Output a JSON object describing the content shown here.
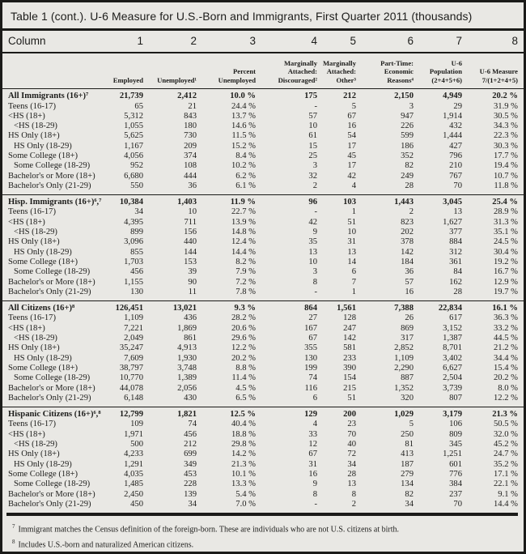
{
  "title": "Table 1 (cont.). U-6 Measure for U.S.-Born and Immigrants, First Quarter 2011 (thousands)",
  "columns": {
    "row_label": "Column",
    "numbers": [
      "1",
      "2",
      "3",
      "4",
      "5",
      "6",
      "7",
      "8"
    ],
    "headers": [
      "Employed",
      "Unemployed¹",
      "Percent\nUnemployed",
      "Marginally\nAttached:\nDiscouraged²",
      "Marginally\nAttached:\nOther³",
      "Part-Time:\nEconomic\nReasons⁴",
      "U-6\nPopulation\n(2+4+5+6)",
      "U-6 Measure\n7/(1+2+4+5)"
    ]
  },
  "groups": [
    {
      "label": "All Immigrants (16+)⁷",
      "values": [
        "21,739",
        "2,412",
        "10.0 %",
        "175",
        "212",
        "2,150",
        "4,949",
        "20.2 %"
      ],
      "rows": [
        {
          "label": "Teens (16-17)",
          "indent": 0,
          "values": [
            "65",
            "21",
            "24.4 %",
            "-",
            "5",
            "3",
            "29",
            "31.9 %"
          ]
        },
        {
          "label": "<HS (18+)",
          "indent": 0,
          "values": [
            "5,312",
            "843",
            "13.7 %",
            "57",
            "67",
            "947",
            "1,914",
            "30.5 %"
          ]
        },
        {
          "label": "<HS (18-29)",
          "indent": 1,
          "values": [
            "1,055",
            "180",
            "14.6 %",
            "10",
            "16",
            "226",
            "432",
            "34.3 %"
          ]
        },
        {
          "label": "HS Only (18+)",
          "indent": 0,
          "values": [
            "5,625",
            "730",
            "11.5 %",
            "61",
            "54",
            "599",
            "1,444",
            "22.3 %"
          ]
        },
        {
          "label": "HS Only (18-29)",
          "indent": 1,
          "values": [
            "1,167",
            "209",
            "15.2 %",
            "15",
            "17",
            "186",
            "427",
            "30.3 %"
          ]
        },
        {
          "label": "Some College (18+)",
          "indent": 0,
          "values": [
            "4,056",
            "374",
            "8.4 %",
            "25",
            "45",
            "352",
            "796",
            "17.7 %"
          ]
        },
        {
          "label": "Some College (18-29)",
          "indent": 1,
          "values": [
            "952",
            "108",
            "10.2 %",
            "3",
            "17",
            "82",
            "210",
            "19.4 %"
          ]
        },
        {
          "label": "Bachelor's or More (18+)",
          "indent": 0,
          "values": [
            "6,680",
            "444",
            "6.2 %",
            "32",
            "42",
            "249",
            "767",
            "10.7 %"
          ]
        },
        {
          "label": "Bachelor's Only (21-29)",
          "indent": 0,
          "values": [
            "550",
            "36",
            "6.1 %",
            "2",
            "4",
            "28",
            "70",
            "11.8 %"
          ]
        }
      ]
    },
    {
      "label": "Hisp. Immigrants (16+)⁶,⁷",
      "values": [
        "10,384",
        "1,403",
        "11.9 %",
        "96",
        "103",
        "1,443",
        "3,045",
        "25.4 %"
      ],
      "rows": [
        {
          "label": "Teens (16-17)",
          "indent": 0,
          "values": [
            "34",
            "10",
            "22.7 %",
            "-",
            "1",
            "2",
            "13",
            "28.9 %"
          ]
        },
        {
          "label": "<HS (18+)",
          "indent": 0,
          "values": [
            "4,395",
            "711",
            "13.9 %",
            "42",
            "51",
            "823",
            "1,627",
            "31.3 %"
          ]
        },
        {
          "label": "<HS (18-29)",
          "indent": 1,
          "values": [
            "899",
            "156",
            "14.8 %",
            "9",
            "10",
            "202",
            "377",
            "35.1 %"
          ]
        },
        {
          "label": "HS Only (18+)",
          "indent": 0,
          "values": [
            "3,096",
            "440",
            "12.4 %",
            "35",
            "31",
            "378",
            "884",
            "24.5 %"
          ]
        },
        {
          "label": "HS Only (18-29)",
          "indent": 1,
          "values": [
            "855",
            "144",
            "14.4 %",
            "13",
            "13",
            "142",
            "312",
            "30.4 %"
          ]
        },
        {
          "label": "Some College (18+)",
          "indent": 0,
          "values": [
            "1,703",
            "153",
            "8.2 %",
            "10",
            "14",
            "184",
            "361",
            "19.2 %"
          ]
        },
        {
          "label": "Some College (18-29)",
          "indent": 1,
          "values": [
            "456",
            "39",
            "7.9 %",
            "3",
            "6",
            "36",
            "84",
            "16.7 %"
          ]
        },
        {
          "label": "Bachelor's or More (18+)",
          "indent": 0,
          "values": [
            "1,155",
            "90",
            "7.2 %",
            "8",
            "7",
            "57",
            "162",
            "12.9 %"
          ]
        },
        {
          "label": "Bachelor's Only (21-29)",
          "indent": 0,
          "values": [
            "130",
            "11",
            "7.8 %",
            "-",
            "1",
            "16",
            "28",
            "19.7 %"
          ]
        }
      ]
    },
    {
      "label": "All Citizens (16+)⁸",
      "values": [
        "126,451",
        "13,021",
        "9.3 %",
        "864",
        "1,561",
        "7,388",
        "22,834",
        "16.1 %"
      ],
      "rows": [
        {
          "label": "Teens (16-17)",
          "indent": 0,
          "values": [
            "1,109",
            "436",
            "28.2 %",
            "27",
            "128",
            "26",
            "617",
            "36.3 %"
          ]
        },
        {
          "label": "<HS (18+)",
          "indent": 0,
          "values": [
            "7,221",
            "1,869",
            "20.6 %",
            "167",
            "247",
            "869",
            "3,152",
            "33.2 %"
          ]
        },
        {
          "label": "<HS (18-29)",
          "indent": 1,
          "values": [
            "2,049",
            "861",
            "29.6 %",
            "67",
            "142",
            "317",
            "1,387",
            "44.5 %"
          ]
        },
        {
          "label": "HS Only (18+)",
          "indent": 0,
          "values": [
            "35,247",
            "4,913",
            "12.2 %",
            "355",
            "581",
            "2,852",
            "8,701",
            "21.2 %"
          ]
        },
        {
          "label": "HS Only (18-29)",
          "indent": 1,
          "values": [
            "7,609",
            "1,930",
            "20.2 %",
            "130",
            "233",
            "1,109",
            "3,402",
            "34.4 %"
          ]
        },
        {
          "label": "Some College (18+)",
          "indent": 0,
          "values": [
            "38,797",
            "3,748",
            "8.8 %",
            "199",
            "390",
            "2,290",
            "6,627",
            "15.4 %"
          ]
        },
        {
          "label": "Some College (18-29)",
          "indent": 1,
          "values": [
            "10,770",
            "1,389",
            "11.4 %",
            "74",
            "154",
            "887",
            "2,504",
            "20.2 %"
          ]
        },
        {
          "label": "Bachelor's or More (18+)",
          "indent": 0,
          "values": [
            "44,078",
            "2,056",
            "4.5 %",
            "116",
            "215",
            "1,352",
            "3,739",
            "8.0 %"
          ]
        },
        {
          "label": "Bachelor's Only (21-29)",
          "indent": 0,
          "values": [
            "6,148",
            "430",
            "6.5 %",
            "6",
            "51",
            "320",
            "807",
            "12.2 %"
          ]
        }
      ]
    },
    {
      "label": "Hispanic Citizens (16+)⁶,⁸",
      "values": [
        "12,799",
        "1,821",
        "12.5 %",
        "129",
        "200",
        "1,029",
        "3,179",
        "21.3 %"
      ],
      "rows": [
        {
          "label": "Teens (16-17)",
          "indent": 0,
          "values": [
            "109",
            "74",
            "40.4 %",
            "4",
            "23",
            "5",
            "106",
            "50.5 %"
          ]
        },
        {
          "label": "<HS (18+)",
          "indent": 0,
          "values": [
            "1,971",
            "456",
            "18.8 %",
            "33",
            "70",
            "250",
            "809",
            "32.0 %"
          ]
        },
        {
          "label": "<HS (18-29)",
          "indent": 1,
          "values": [
            "500",
            "212",
            "29.8 %",
            "12",
            "40",
            "81",
            "345",
            "45.2 %"
          ]
        },
        {
          "label": "HS Only (18+)",
          "indent": 0,
          "values": [
            "4,233",
            "699",
            "14.2 %",
            "67",
            "72",
            "413",
            "1,251",
            "24.7 %"
          ]
        },
        {
          "label": "HS Only (18-29)",
          "indent": 1,
          "values": [
            "1,291",
            "349",
            "21.3 %",
            "31",
            "34",
            "187",
            "601",
            "35.2 %"
          ]
        },
        {
          "label": "Some College (18+)",
          "indent": 0,
          "values": [
            "4,035",
            "453",
            "10.1 %",
            "16",
            "28",
            "279",
            "776",
            "17.1 %"
          ]
        },
        {
          "label": "Some College (18-29)",
          "indent": 1,
          "values": [
            "1,485",
            "228",
            "13.3 %",
            "9",
            "13",
            "134",
            "384",
            "22.1 %"
          ]
        },
        {
          "label": "Bachelor's or More (18+)",
          "indent": 0,
          "values": [
            "2,450",
            "139",
            "5.4 %",
            "8",
            "8",
            "82",
            "237",
            "9.1 %"
          ]
        },
        {
          "label": "Bachelor's Only (21-29)",
          "indent": 0,
          "values": [
            "450",
            "34",
            "7.0 %",
            "-",
            "2",
            "34",
            "70",
            "14.4 %"
          ]
        }
      ]
    }
  ],
  "footnotes": [
    {
      "sup": "7",
      "text": "Immigrant matches the Census definition of the foreign-born.  These are individuals who are not U.S. citizens at birth."
    },
    {
      "sup": "8",
      "text": "Includes U.S.-born and naturalized American citizens."
    }
  ],
  "colors": {
    "background": "#e9e8e4",
    "frame": "#1b1b19",
    "text": "#1d1d1b"
  }
}
